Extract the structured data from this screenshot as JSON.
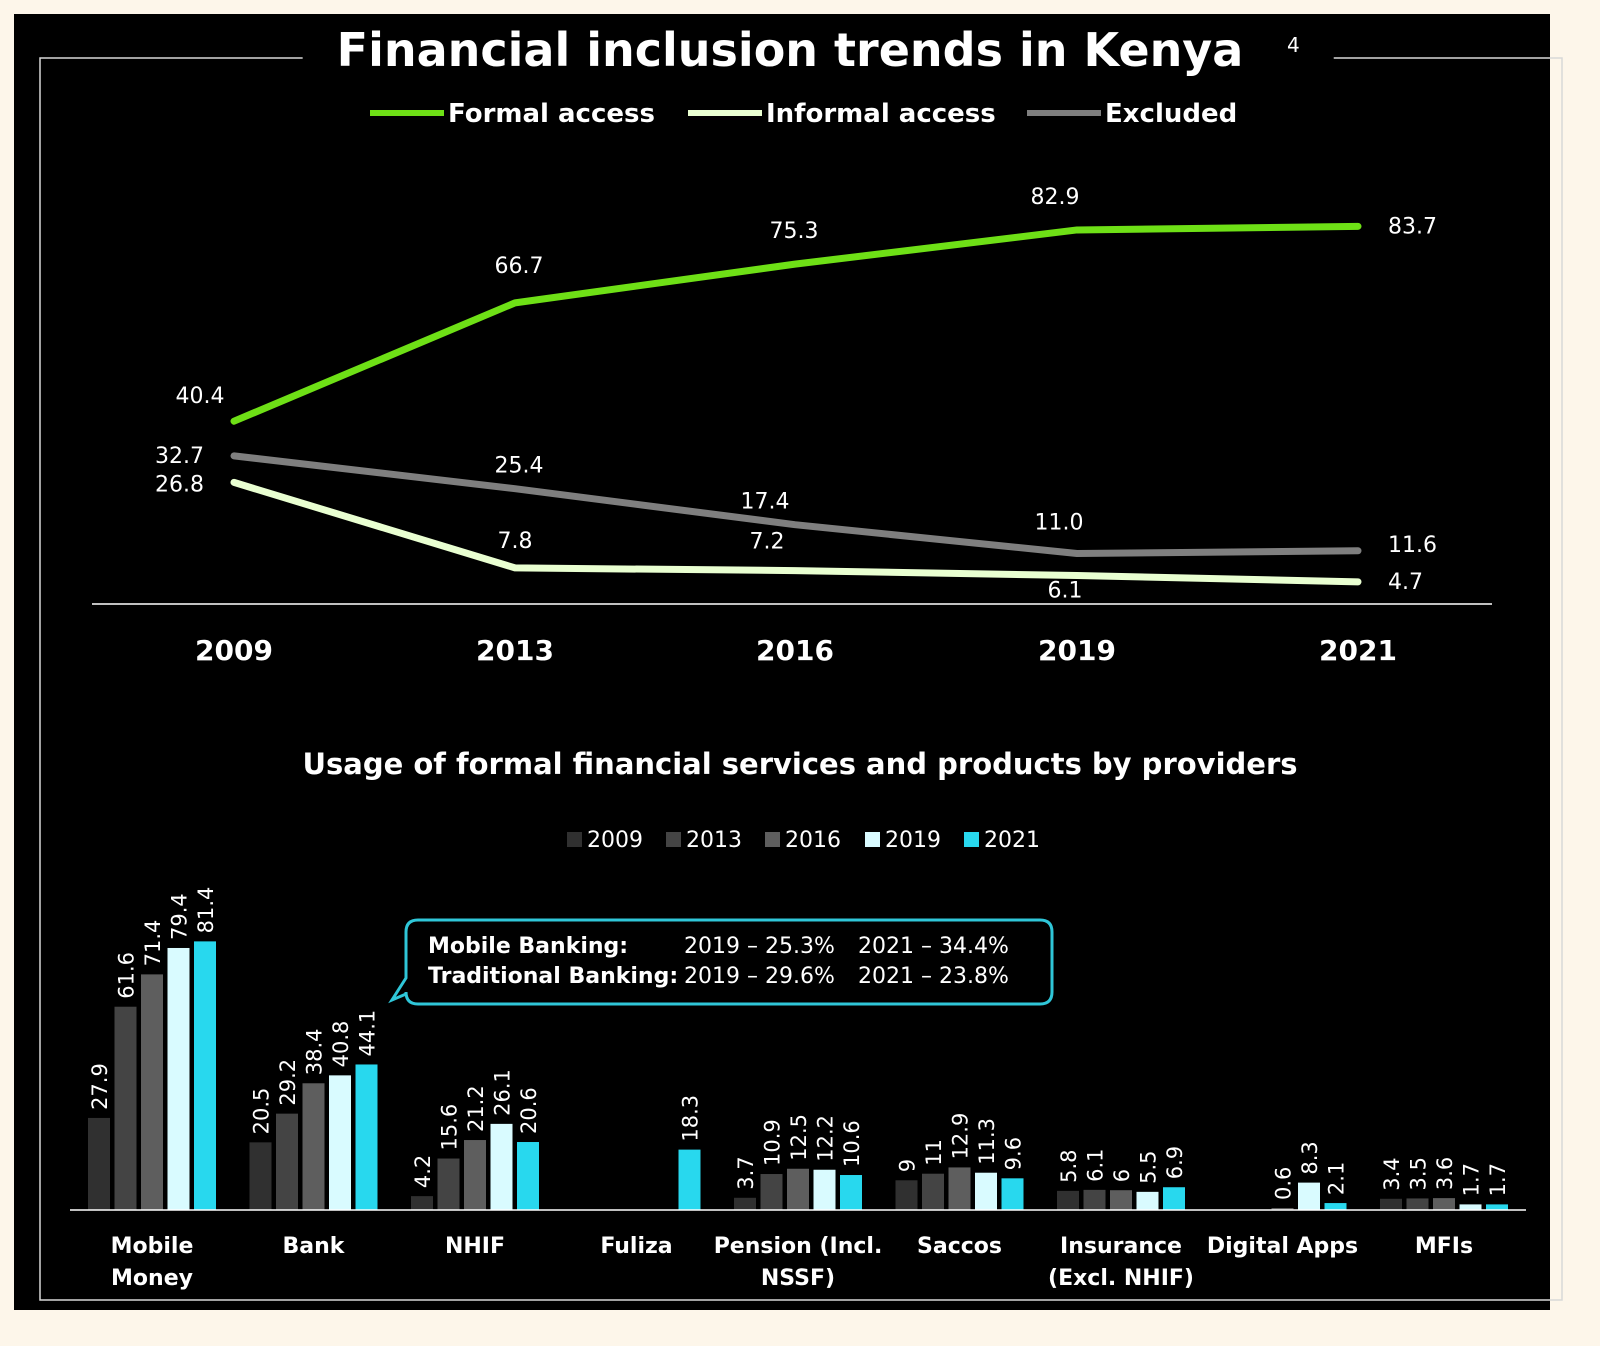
{
  "page": {
    "background": "#000000",
    "frame_color": "#fdf6ea"
  },
  "chart_data": [
    {
      "type": "line",
      "title": "Financial inclusion trends in Kenya",
      "title_superscript": "4",
      "xlabel": "",
      "ylabel": "",
      "x": [
        "2009",
        "2013",
        "2016",
        "2019",
        "2021"
      ],
      "grid": false,
      "legend_position": "top",
      "series": [
        {
          "name": "Formal access",
          "color": "#6ee016",
          "values": [
            40.4,
            66.7,
            75.3,
            82.9,
            83.7
          ],
          "labels": [
            "40.4",
            "66.7",
            "75.3",
            "82.9",
            "83.7"
          ]
        },
        {
          "name": "Informal access",
          "color": "#e9ffd1",
          "values": [
            26.8,
            7.8,
            7.2,
            6.1,
            4.7
          ],
          "labels": [
            "26.8",
            "7.8",
            "7.2",
            "6.1",
            "4.7"
          ]
        },
        {
          "name": "Excluded",
          "color": "#7f7f7f",
          "values": [
            32.7,
            25.4,
            17.4,
            11.0,
            11.6
          ],
          "labels": [
            "32.7",
            "25.4",
            "17.4",
            "11.0",
            "11.6"
          ]
        }
      ]
    },
    {
      "type": "bar",
      "title": "Usage of formal financial services and products by providers",
      "xlabel": "",
      "ylabel": "",
      "grid": false,
      "legend_position": "top",
      "categories": [
        [
          "Mobile",
          "Money"
        ],
        [
          "Bank"
        ],
        [
          "NHIF"
        ],
        [
          "Fuliza"
        ],
        [
          "Pension (Incl.",
          "NSSF)"
        ],
        [
          "Saccos"
        ],
        [
          "Insurance",
          "(Excl. NHIF)"
        ],
        [
          "Digital Apps"
        ],
        [
          "MFIs"
        ]
      ],
      "series": [
        {
          "name": "2009",
          "color": "#303030",
          "values": [
            27.9,
            20.5,
            4.2,
            null,
            3.7,
            9,
            5.8,
            null,
            3.4
          ],
          "labels": [
            "27.9",
            "20.5",
            "4.2",
            "",
            "3.7",
            "9",
            "5.8",
            "",
            "3.4"
          ]
        },
        {
          "name": "2013",
          "color": "#444444",
          "values": [
            61.6,
            29.2,
            15.6,
            null,
            10.9,
            11,
            6.1,
            null,
            3.5
          ],
          "labels": [
            "61.6",
            "29.2",
            "15.6",
            "",
            "10.9",
            "11",
            "6.1",
            "",
            "3.5"
          ]
        },
        {
          "name": "2016",
          "color": "#5e5e5e",
          "values": [
            71.4,
            38.4,
            21.2,
            null,
            12.5,
            12.9,
            6,
            0.6,
            3.6
          ],
          "labels": [
            "71.4",
            "38.4",
            "21.2",
            "",
            "12.5",
            "12.9",
            "6",
            "0.6",
            "3.6"
          ]
        },
        {
          "name": "2019",
          "color": "#d9fbff",
          "values": [
            79.4,
            40.8,
            26.1,
            null,
            12.2,
            11.3,
            5.5,
            8.3,
            1.7
          ],
          "labels": [
            "79.4",
            "40.8",
            "26.1",
            "",
            "12.2",
            "11.3",
            "5.5",
            "8.3",
            "1.7"
          ]
        },
        {
          "name": "2021",
          "color": "#28d8ee",
          "values": [
            81.4,
            44.1,
            20.6,
            18.3,
            10.6,
            9.6,
            6.9,
            2.1,
            1.7
          ],
          "labels": [
            "81.4",
            "44.1",
            "20.6",
            "18.3",
            "10.6",
            "9.6",
            "6.9",
            "2.1",
            "1.7"
          ]
        }
      ],
      "annotation": {
        "border_color": "#2fc6d8",
        "rows": [
          {
            "label": "Mobile Banking:",
            "v2019": "2019 – 25.3%",
            "v2021": "2021 – 34.4%"
          },
          {
            "label": "Traditional Banking:",
            "v2019": "2019 – 29.6%",
            "v2021": "2021 – 23.8%"
          }
        ]
      }
    }
  ]
}
